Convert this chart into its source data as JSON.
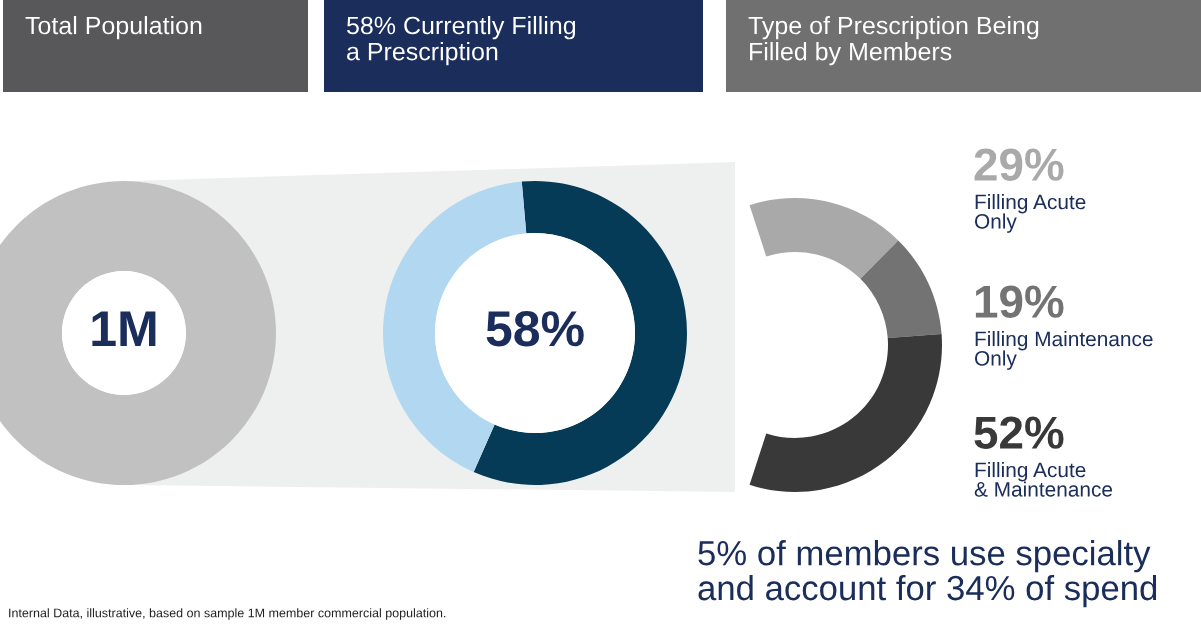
{
  "chart_data": [
    {
      "type": "donut",
      "title": "Total Population",
      "categories": [
        null
      ],
      "values": [
        1000000
      ],
      "colors": [
        "#c1c1c1"
      ],
      "value_labels": [
        "1M"
      ],
      "legend": false,
      "annotations": [
        "Internal Data, illustrative, based on sample 1M member commercial population."
      ]
    },
    {
      "type": "donut",
      "title": "58% Currently Filling\na Prescription",
      "categories": [
        null,
        null
      ],
      "values": [
        58,
        42
      ],
      "colors": [
        "#053b56",
        "#b2d8f1"
      ],
      "value_labels": [
        "58%",
        null
      ],
      "legend": false
    },
    {
      "type": "donut",
      "title": "Type of Prescription Being\nFilled by Members",
      "categories": [
        "Filling Acute\nOnly",
        "Filling Maintenance\nOnly",
        "Filling Acute\n& Maintenance"
      ],
      "values": [
        29,
        19,
        52
      ],
      "colors": [
        "#a9a9a9",
        "#737373",
        "#393939"
      ],
      "value_labels": [
        "29%",
        "19%",
        "52%"
      ],
      "legend": false,
      "annotations": [
        "5% of members use specialty\nand account for 34% of spend"
      ]
    }
  ]
}
